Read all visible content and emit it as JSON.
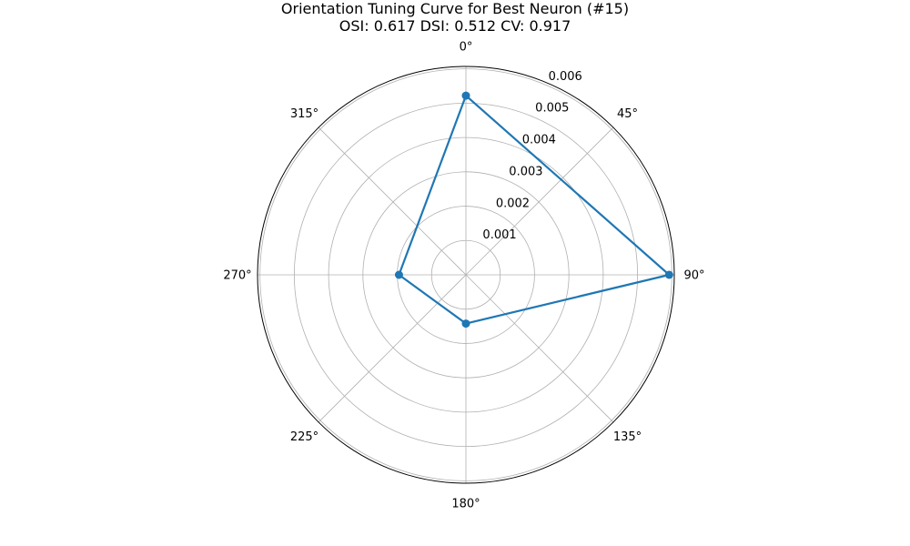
{
  "chart_data": {
    "type": "polar-line",
    "title": "Orientation Tuning Curve for Best Neuron (#15)",
    "subtitle": "OSI: 0.617 DSI: 0.512 CV: 0.917",
    "theta_zero_location": "N",
    "theta_direction": "clockwise",
    "theta_tick_labels": [
      "0°",
      "45°",
      "90°",
      "135°",
      "180°",
      "225°",
      "270°",
      "315°"
    ],
    "theta_ticks_deg": [
      0,
      45,
      90,
      135,
      180,
      225,
      270,
      315
    ],
    "r_ticks": [
      0.001,
      0.002,
      0.003,
      0.004,
      0.005,
      0.006
    ],
    "r_tick_labels": [
      "0.001",
      "0.002",
      "0.003",
      "0.004",
      "0.005",
      "0.006"
    ],
    "rlim": [
      0,
      0.00607
    ],
    "grid": true,
    "series": [
      {
        "color": "#1f77b4",
        "marker": "circle",
        "theta_deg": [
          0,
          90,
          180,
          270,
          0
        ],
        "r": [
          0.00522,
          0.00592,
          0.00142,
          0.00195,
          0.00522
        ]
      }
    ]
  }
}
